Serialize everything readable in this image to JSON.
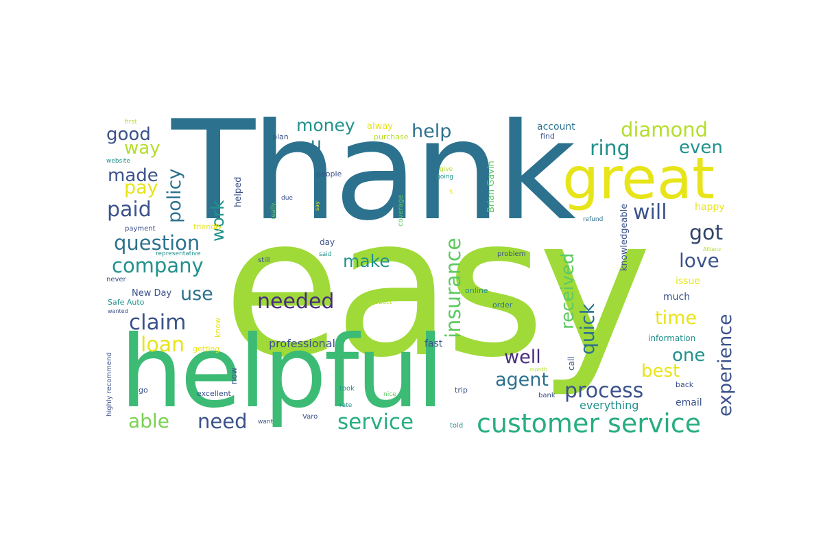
{
  "palette": {
    "purple": "#472d7b",
    "indigo": "#3b528b",
    "blue": "#2c728e",
    "teal": "#21918c",
    "green": "#28ae80",
    "emerald": "#3cbb75",
    "lime": "#5ec962",
    "yellowgreen": "#a0da39",
    "yellow": "#e7e419",
    "darkpurple": "#440154"
  },
  "words": [
    {
      "text": "Thank",
      "color": "#2c728e",
      "vertical": false
    },
    {
      "text": "easy",
      "color": "#a0da39",
      "vertical": false
    },
    {
      "text": "helpful",
      "color": "#3cbb75",
      "vertical": false
    },
    {
      "text": "great",
      "color": "#e7e419",
      "vertical": false
    },
    {
      "text": "customer service",
      "color": "#28ae80",
      "vertical": false
    },
    {
      "text": "diamond",
      "color": "#b5de2b",
      "vertical": false
    },
    {
      "text": "ring",
      "color": "#21918c",
      "vertical": false
    },
    {
      "text": "even",
      "color": "#21918c",
      "vertical": false
    },
    {
      "text": "will",
      "color": "#3b528b",
      "vertical": false
    },
    {
      "text": "got",
      "color": "#31446b",
      "vertical": false
    },
    {
      "text": "love",
      "color": "#3b528b",
      "vertical": false
    },
    {
      "text": "experience",
      "color": "#3b528b",
      "vertical": true
    },
    {
      "text": "received",
      "color": "#5ec962",
      "vertical": true
    },
    {
      "text": "quick",
      "color": "#2c728e",
      "vertical": true
    },
    {
      "text": "time",
      "color": "#e7e419",
      "vertical": false
    },
    {
      "text": "one",
      "color": "#21918c",
      "vertical": false
    },
    {
      "text": "best",
      "color": "#e7e419",
      "vertical": false
    },
    {
      "text": "well",
      "color": "#472d7b",
      "vertical": false
    },
    {
      "text": "agent",
      "color": "#2c728e",
      "vertical": false
    },
    {
      "text": "process",
      "color": "#3b528b",
      "vertical": false
    },
    {
      "text": "insurance",
      "color": "#5ec962",
      "vertical": true
    },
    {
      "text": "needed",
      "color": "#472d7b",
      "vertical": false
    },
    {
      "text": "make",
      "color": "#21918c",
      "vertical": false
    },
    {
      "text": "service",
      "color": "#28ae80",
      "vertical": false
    },
    {
      "text": "need",
      "color": "#3b528b",
      "vertical": false
    },
    {
      "text": "able",
      "color": "#7ad151",
      "vertical": false
    },
    {
      "text": "loan",
      "color": "#e7e419",
      "vertical": false
    },
    {
      "text": "claim",
      "color": "#3b528b",
      "vertical": false
    },
    {
      "text": "use",
      "color": "#2c728e",
      "vertical": false
    },
    {
      "text": "company",
      "color": "#21918c",
      "vertical": false
    },
    {
      "text": "question",
      "color": "#2c728e",
      "vertical": false
    },
    {
      "text": "paid",
      "color": "#3b528b",
      "vertical": false
    },
    {
      "text": "pay",
      "color": "#e7e419",
      "vertical": false
    },
    {
      "text": "made",
      "color": "#3b528b",
      "vertical": false
    },
    {
      "text": "way",
      "color": "#b5de2b",
      "vertical": false
    },
    {
      "text": "good",
      "color": "#3b528b",
      "vertical": false
    },
    {
      "text": "policy",
      "color": "#2c728e",
      "vertical": true
    },
    {
      "text": "work",
      "color": "#21918c",
      "vertical": true
    },
    {
      "text": "money",
      "color": "#21918c",
      "vertical": false
    },
    {
      "text": "u",
      "color": "#2c728e",
      "vertical": false
    },
    {
      "text": "help",
      "color": "#2c728e",
      "vertical": false
    },
    {
      "text": "alway",
      "color": "#e7e419",
      "vertical": false
    },
    {
      "text": "account",
      "color": "#2c728e",
      "vertical": false
    },
    {
      "text": "find",
      "color": "#3b528b",
      "vertical": false
    },
    {
      "text": "purchase",
      "color": "#b5de2b",
      "vertical": false
    },
    {
      "text": "plan",
      "color": "#3b528b",
      "vertical": false
    },
    {
      "text": "first",
      "color": "#b5de2b",
      "vertical": false
    },
    {
      "text": "website",
      "color": "#21918c",
      "vertical": false
    },
    {
      "text": "helped",
      "color": "#3b528b",
      "vertical": true
    },
    {
      "text": "people",
      "color": "#3b528b",
      "vertical": false
    },
    {
      "text": "give",
      "color": "#b5de2b",
      "vertical": false
    },
    {
      "text": "going",
      "color": "#21918c",
      "vertical": false
    },
    {
      "text": "s",
      "color": "#e7e419",
      "vertical": false
    },
    {
      "text": "Brian Gavin",
      "color": "#5ec962",
      "vertical": true
    },
    {
      "text": "coverage",
      "color": "#5ec962",
      "vertical": true
    },
    {
      "text": "really",
      "color": "#5ec962",
      "vertical": true
    },
    {
      "text": "due",
      "color": "#3b528b",
      "vertical": false
    },
    {
      "text": "say",
      "color": "#e7e419",
      "vertical": true
    },
    {
      "text": "happy",
      "color": "#e7e419",
      "vertical": false
    },
    {
      "text": "refund",
      "color": "#2c728e",
      "vertical": false
    },
    {
      "text": "knowledgeable",
      "color": "#3b528b",
      "vertical": true
    },
    {
      "text": "Allianz",
      "color": "#b5de2b",
      "vertical": false
    },
    {
      "text": "payment",
      "color": "#3b528b",
      "vertical": false
    },
    {
      "text": "friendly",
      "color": "#e7e419",
      "vertical": false
    },
    {
      "text": "representative",
      "color": "#21918c",
      "vertical": false
    },
    {
      "text": "day",
      "color": "#3b528b",
      "vertical": false
    },
    {
      "text": "said",
      "color": "#21918c",
      "vertical": false
    },
    {
      "text": "still",
      "color": "#3b528b",
      "vertical": false
    },
    {
      "text": "problem",
      "color": "#3b528b",
      "vertical": false
    },
    {
      "text": "never",
      "color": "#3b528b",
      "vertical": false
    },
    {
      "text": "New Day",
      "color": "#3b528b",
      "vertical": false
    },
    {
      "text": "Safe Auto",
      "color": "#21918c",
      "vertical": false
    },
    {
      "text": "wanted",
      "color": "#3b528b",
      "vertical": false
    },
    {
      "text": "know",
      "color": "#e7e419",
      "vertical": true
    },
    {
      "text": "online",
      "color": "#21918c",
      "vertical": false
    },
    {
      "text": "product",
      "color": "#b5de2b",
      "vertical": false
    },
    {
      "text": "order",
      "color": "#2c728e",
      "vertical": false
    },
    {
      "text": "issue",
      "color": "#e7e419",
      "vertical": false
    },
    {
      "text": "much",
      "color": "#3b528b",
      "vertical": false
    },
    {
      "text": "information",
      "color": "#21918c",
      "vertical": false
    },
    {
      "text": "professional",
      "color": "#3b528b",
      "vertical": false
    },
    {
      "text": "fast",
      "color": "#3b528b",
      "vertical": false
    },
    {
      "text": "getting",
      "color": "#e7e419",
      "vertical": false
    },
    {
      "text": "highly recommend",
      "color": "#3b528b",
      "vertical": true
    },
    {
      "text": "now",
      "color": "#3b528b",
      "vertical": true
    },
    {
      "text": "month",
      "color": "#b5de2b",
      "vertical": false
    },
    {
      "text": "call",
      "color": "#3b528b",
      "vertical": true
    },
    {
      "text": "go",
      "color": "#3b528b",
      "vertical": false
    },
    {
      "text": "excellent",
      "color": "#3b528b",
      "vertical": false
    },
    {
      "text": "took",
      "color": "#21918c",
      "vertical": false
    },
    {
      "text": "nice",
      "color": "#5ec962",
      "vertical": false
    },
    {
      "text": "trip",
      "color": "#3b528b",
      "vertical": false
    },
    {
      "text": "back",
      "color": "#3b528b",
      "vertical": false
    },
    {
      "text": "bank",
      "color": "#3b528b",
      "vertical": false
    },
    {
      "text": "rate",
      "color": "#21918c",
      "vertical": false
    },
    {
      "text": "everything",
      "color": "#21918c",
      "vertical": false
    },
    {
      "text": "email",
      "color": "#3b528b",
      "vertical": false
    },
    {
      "text": "Varo",
      "color": "#3b528b",
      "vertical": false
    },
    {
      "text": "want",
      "color": "#3b528b",
      "vertical": false
    },
    {
      "text": "told",
      "color": "#21918c",
      "vertical": false
    }
  ]
}
